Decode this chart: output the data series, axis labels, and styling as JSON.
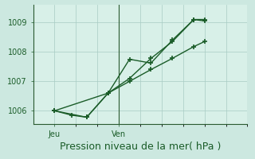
{
  "title": "Pression niveau de la mer( hPa )",
  "background_color": "#cce8e0",
  "plot_bg_color": "#d8f0e8",
  "line_color": "#1a5c28",
  "grid_color": "#a8ccc4",
  "ylabel_ticks": [
    1006,
    1007,
    1008,
    1009
  ],
  "ylim": [
    1005.55,
    1009.6
  ],
  "xlim": [
    0,
    10
  ],
  "xtick_positions": [
    1,
    4
  ],
  "xtick_labels": [
    "Jeu",
    "Ven"
  ],
  "series1_x": [
    1,
    1.8,
    2.5,
    3.5,
    4.5,
    5.5,
    6.5,
    7.5,
    8.0
  ],
  "series1_y": [
    1006.0,
    1005.85,
    1005.78,
    1006.6,
    1007.1,
    1007.78,
    1008.35,
    1009.1,
    1009.1
  ],
  "series2_x": [
    1,
    2.5,
    3.5,
    4.5,
    5.5,
    6.5,
    7.5,
    8.0
  ],
  "series2_y": [
    1006.0,
    1005.78,
    1006.6,
    1007.75,
    1007.62,
    1008.4,
    1009.1,
    1009.05
  ],
  "series3_x": [
    1,
    3.5,
    4.5,
    5.5,
    6.5,
    7.5,
    8.0
  ],
  "series3_y": [
    1006.0,
    1006.6,
    1007.0,
    1007.4,
    1007.78,
    1008.18,
    1008.35
  ],
  "linewidth": 1.0,
  "markersize": 4,
  "tick_fontsize": 7,
  "title_fontsize": 9,
  "grid_x_positions": [
    1,
    2,
    3,
    4,
    5,
    6,
    7,
    8,
    9,
    10
  ],
  "spine_color": "#2a5a30"
}
